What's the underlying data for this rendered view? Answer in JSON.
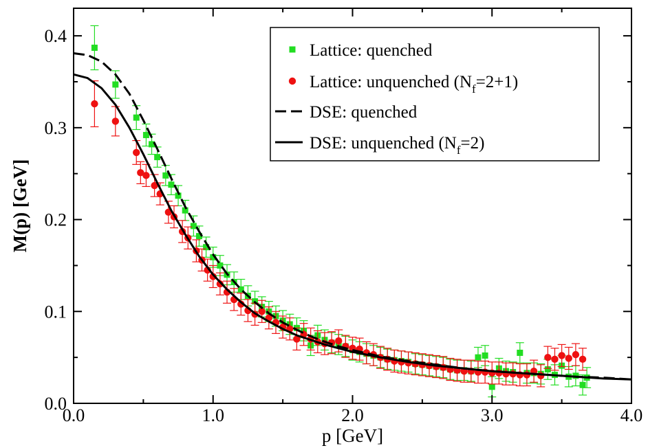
{
  "chart_data": {
    "type": "scatter",
    "xlabel": "p [GeV]",
    "ylabel": "M(p) [GeV]",
    "xlim": [
      0,
      4.0
    ],
    "ylim": [
      0,
      0.43
    ],
    "x_ticks": [
      "0.0",
      "1.0",
      "2.0",
      "3.0",
      "4.0"
    ],
    "y_ticks": [
      "0.0",
      "0.1",
      "0.2",
      "0.3",
      "0.4"
    ],
    "grid": false,
    "legend_position": "top-right",
    "legend": [
      {
        "text": "Lattice: quenched",
        "sub": "",
        "suffix": ""
      },
      {
        "text": "Lattice: unquenched (N",
        "sub": "f",
        "suffix": "=2+1)"
      },
      {
        "text": "DSE: quenched",
        "sub": "",
        "suffix": ""
      },
      {
        "text": "DSE: unquenched (N",
        "sub": "f",
        "suffix": "=2)"
      }
    ],
    "series": [
      {
        "kind": "points",
        "marker": "square",
        "color": "#22dd22",
        "points": [
          [
            0.15,
            0.387,
            0.024
          ],
          [
            0.3,
            0.347,
            0.015
          ],
          [
            0.45,
            0.311,
            0.013
          ],
          [
            0.52,
            0.292,
            0.012
          ],
          [
            0.56,
            0.282,
            0.011
          ],
          [
            0.6,
            0.268,
            0.011
          ],
          [
            0.66,
            0.248,
            0.011
          ],
          [
            0.7,
            0.238,
            0.011
          ],
          [
            0.75,
            0.226,
            0.011
          ],
          [
            0.8,
            0.21,
            0.011
          ],
          [
            0.86,
            0.193,
            0.011
          ],
          [
            0.9,
            0.182,
            0.011
          ],
          [
            0.95,
            0.17,
            0.011
          ],
          [
            1.0,
            0.159,
            0.011
          ],
          [
            1.05,
            0.15,
            0.011
          ],
          [
            1.1,
            0.14,
            0.011
          ],
          [
            1.15,
            0.132,
            0.011
          ],
          [
            1.2,
            0.124,
            0.011
          ],
          [
            1.25,
            0.117,
            0.011
          ],
          [
            1.3,
            0.111,
            0.011
          ],
          [
            1.35,
            0.105,
            0.011
          ],
          [
            1.4,
            0.1,
            0.011
          ],
          [
            1.45,
            0.095,
            0.011
          ],
          [
            1.5,
            0.09,
            0.011
          ],
          [
            1.55,
            0.086,
            0.011
          ],
          [
            1.6,
            0.082,
            0.011
          ],
          [
            1.65,
            0.079,
            0.011
          ],
          [
            1.7,
            0.063,
            0.011
          ],
          [
            1.75,
            0.074,
            0.011
          ],
          [
            1.8,
            0.069,
            0.011
          ],
          [
            1.85,
            0.066,
            0.011
          ],
          [
            1.9,
            0.064,
            0.011
          ],
          [
            1.95,
            0.062,
            0.011
          ],
          [
            2.0,
            0.058,
            0.011
          ],
          [
            2.05,
            0.056,
            0.011
          ],
          [
            2.1,
            0.054,
            0.011
          ],
          [
            2.15,
            0.052,
            0.011
          ],
          [
            2.2,
            0.05,
            0.011
          ],
          [
            2.25,
            0.048,
            0.011
          ],
          [
            2.3,
            0.047,
            0.011
          ],
          [
            2.35,
            0.046,
            0.011
          ],
          [
            2.4,
            0.045,
            0.011
          ],
          [
            2.45,
            0.043,
            0.011
          ],
          [
            2.5,
            0.042,
            0.011
          ],
          [
            2.55,
            0.041,
            0.011
          ],
          [
            2.6,
            0.04,
            0.011
          ],
          [
            2.65,
            0.039,
            0.011
          ],
          [
            2.7,
            0.037,
            0.011
          ],
          [
            2.75,
            0.036,
            0.011
          ],
          [
            2.8,
            0.036,
            0.011
          ],
          [
            2.85,
            0.035,
            0.011
          ],
          [
            2.9,
            0.05,
            0.011
          ],
          [
            2.95,
            0.052,
            0.011
          ],
          [
            3.0,
            0.018,
            0.011
          ],
          [
            3.05,
            0.038,
            0.011
          ],
          [
            3.1,
            0.035,
            0.011
          ],
          [
            3.15,
            0.034,
            0.011
          ],
          [
            3.2,
            0.055,
            0.011
          ],
          [
            3.25,
            0.033,
            0.011
          ],
          [
            3.3,
            0.033,
            0.011
          ],
          [
            3.35,
            0.032,
            0.011
          ],
          [
            3.4,
            0.037,
            0.011
          ],
          [
            3.45,
            0.031,
            0.011
          ],
          [
            3.5,
            0.041,
            0.011
          ],
          [
            3.55,
            0.029,
            0.011
          ],
          [
            3.6,
            0.03,
            0.011
          ],
          [
            3.65,
            0.02,
            0.011
          ],
          [
            3.68,
            0.028,
            0.011
          ]
        ]
      },
      {
        "kind": "points",
        "marker": "circle",
        "color": "#ee1111",
        "points": [
          [
            0.15,
            0.326,
            0.025
          ],
          [
            0.3,
            0.307,
            0.016
          ],
          [
            0.45,
            0.273,
            0.013
          ],
          [
            0.48,
            0.251,
            0.012
          ],
          [
            0.52,
            0.248,
            0.012
          ],
          [
            0.58,
            0.237,
            0.012
          ],
          [
            0.62,
            0.228,
            0.012
          ],
          [
            0.68,
            0.208,
            0.012
          ],
          [
            0.72,
            0.203,
            0.012
          ],
          [
            0.78,
            0.187,
            0.012
          ],
          [
            0.82,
            0.18,
            0.012
          ],
          [
            0.88,
            0.166,
            0.012
          ],
          [
            0.92,
            0.156,
            0.012
          ],
          [
            0.96,
            0.145,
            0.012
          ],
          [
            1.0,
            0.138,
            0.012
          ],
          [
            1.05,
            0.13,
            0.012
          ],
          [
            1.1,
            0.121,
            0.012
          ],
          [
            1.15,
            0.113,
            0.012
          ],
          [
            1.2,
            0.108,
            0.012
          ],
          [
            1.25,
            0.101,
            0.012
          ],
          [
            1.3,
            0.097,
            0.012
          ],
          [
            1.35,
            0.1,
            0.012
          ],
          [
            1.4,
            0.093,
            0.012
          ],
          [
            1.45,
            0.088,
            0.012
          ],
          [
            1.5,
            0.083,
            0.012
          ],
          [
            1.55,
            0.081,
            0.012
          ],
          [
            1.6,
            0.07,
            0.012
          ],
          [
            1.65,
            0.075,
            0.012
          ],
          [
            1.7,
            0.07,
            0.012
          ],
          [
            1.75,
            0.067,
            0.012
          ],
          [
            1.8,
            0.065,
            0.012
          ],
          [
            1.85,
            0.066,
            0.012
          ],
          [
            1.9,
            0.068,
            0.012
          ],
          [
            1.95,
            0.062,
            0.012
          ],
          [
            2.0,
            0.06,
            0.012
          ],
          [
            2.05,
            0.059,
            0.012
          ],
          [
            2.1,
            0.055,
            0.012
          ],
          [
            2.15,
            0.053,
            0.012
          ],
          [
            2.2,
            0.05,
            0.012
          ],
          [
            2.25,
            0.048,
            0.012
          ],
          [
            2.3,
            0.046,
            0.012
          ],
          [
            2.35,
            0.045,
            0.012
          ],
          [
            2.4,
            0.044,
            0.012
          ],
          [
            2.45,
            0.043,
            0.012
          ],
          [
            2.5,
            0.042,
            0.012
          ],
          [
            2.55,
            0.041,
            0.012
          ],
          [
            2.6,
            0.04,
            0.012
          ],
          [
            2.65,
            0.039,
            0.012
          ],
          [
            2.7,
            0.037,
            0.012
          ],
          [
            2.75,
            0.036,
            0.012
          ],
          [
            2.8,
            0.035,
            0.012
          ],
          [
            2.85,
            0.035,
            0.012
          ],
          [
            2.9,
            0.034,
            0.012
          ],
          [
            2.95,
            0.034,
            0.012
          ],
          [
            3.0,
            0.033,
            0.012
          ],
          [
            3.05,
            0.033,
            0.012
          ],
          [
            3.1,
            0.032,
            0.012
          ],
          [
            3.15,
            0.032,
            0.012
          ],
          [
            3.2,
            0.031,
            0.012
          ],
          [
            3.25,
            0.031,
            0.012
          ],
          [
            3.3,
            0.035,
            0.012
          ],
          [
            3.35,
            0.03,
            0.012
          ],
          [
            3.4,
            0.05,
            0.012
          ],
          [
            3.45,
            0.048,
            0.012
          ],
          [
            3.5,
            0.052,
            0.012
          ],
          [
            3.55,
            0.049,
            0.012
          ],
          [
            3.6,
            0.053,
            0.012
          ],
          [
            3.65,
            0.048,
            0.012
          ]
        ]
      },
      {
        "kind": "line",
        "style": "dashed",
        "color": "#000000",
        "points": [
          [
            0.0,
            0.381
          ],
          [
            0.1,
            0.379
          ],
          [
            0.2,
            0.372
          ],
          [
            0.3,
            0.358
          ],
          [
            0.4,
            0.337
          ],
          [
            0.5,
            0.308
          ],
          [
            0.6,
            0.277
          ],
          [
            0.7,
            0.245
          ],
          [
            0.8,
            0.214
          ],
          [
            0.9,
            0.187
          ],
          [
            1.0,
            0.162
          ],
          [
            1.1,
            0.141
          ],
          [
            1.2,
            0.124
          ],
          [
            1.3,
            0.11
          ],
          [
            1.4,
            0.098
          ],
          [
            1.5,
            0.088
          ],
          [
            1.6,
            0.08
          ],
          [
            1.7,
            0.073
          ],
          [
            1.8,
            0.067
          ],
          [
            1.9,
            0.062
          ],
          [
            2.0,
            0.058
          ],
          [
            2.2,
            0.051
          ],
          [
            2.4,
            0.046
          ],
          [
            2.6,
            0.042
          ],
          [
            2.8,
            0.038
          ],
          [
            3.0,
            0.035
          ],
          [
            3.2,
            0.033
          ],
          [
            3.4,
            0.031
          ],
          [
            3.6,
            0.029
          ],
          [
            3.8,
            0.028
          ],
          [
            4.0,
            0.026
          ]
        ]
      },
      {
        "kind": "line",
        "style": "solid",
        "color": "#000000",
        "points": [
          [
            0.0,
            0.358
          ],
          [
            0.1,
            0.354
          ],
          [
            0.2,
            0.343
          ],
          [
            0.3,
            0.325
          ],
          [
            0.4,
            0.3
          ],
          [
            0.5,
            0.271
          ],
          [
            0.6,
            0.24
          ],
          [
            0.7,
            0.21
          ],
          [
            0.8,
            0.184
          ],
          [
            0.9,
            0.16
          ],
          [
            1.0,
            0.14
          ],
          [
            1.1,
            0.124
          ],
          [
            1.2,
            0.11
          ],
          [
            1.3,
            0.098
          ],
          [
            1.4,
            0.089
          ],
          [
            1.5,
            0.081
          ],
          [
            1.6,
            0.074
          ],
          [
            1.7,
            0.069
          ],
          [
            1.8,
            0.064
          ],
          [
            1.9,
            0.06
          ],
          [
            2.0,
            0.056
          ],
          [
            2.2,
            0.05
          ],
          [
            2.4,
            0.045
          ],
          [
            2.6,
            0.041
          ],
          [
            2.8,
            0.038
          ],
          [
            3.0,
            0.035
          ],
          [
            3.2,
            0.033
          ],
          [
            3.4,
            0.031
          ],
          [
            3.6,
            0.029
          ],
          [
            3.8,
            0.027
          ],
          [
            4.0,
            0.026
          ]
        ]
      }
    ]
  }
}
